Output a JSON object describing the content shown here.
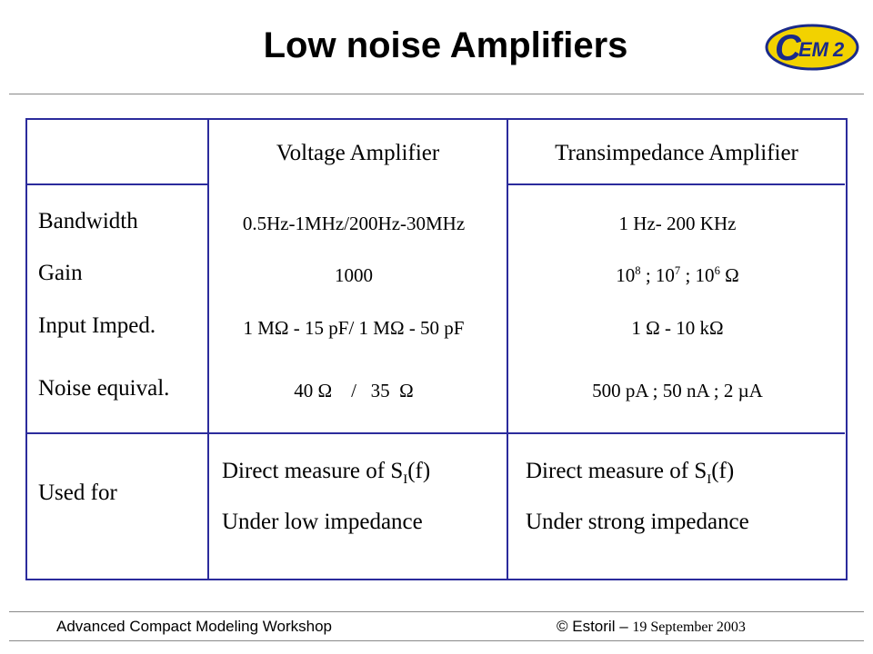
{
  "header": {
    "title": "Low noise Amplifiers",
    "logo": {
      "letter": "C",
      "text": "EM",
      "subscript": "2"
    }
  },
  "table": {
    "columns": [
      "Voltage Amplifier",
      "Transimpedance Amplifier"
    ],
    "rows": [
      {
        "label": "Bandwidth",
        "cells": [
          [
            {
              "text": "0.5Hz-1MHz/200Hz-30MHz"
            }
          ],
          [
            {
              "text": "1 Hz- 200 KHz"
            }
          ]
        ]
      },
      {
        "label": "Gain",
        "cells": [
          [
            {
              "text": "1000"
            }
          ],
          [
            {
              "text": "10"
            },
            {
              "text": "8",
              "style": "sup"
            },
            {
              "text": " ; 10"
            },
            {
              "text": "7",
              "style": "sup"
            },
            {
              "text": " ; 10"
            },
            {
              "text": "6",
              "style": "sup"
            },
            {
              "text": " Ω"
            }
          ]
        ]
      },
      {
        "label": "Input Imped.",
        "cells": [
          [
            {
              "text": "1 MΩ - 15 pF/ 1 MΩ - 50 pF"
            }
          ],
          [
            {
              "text": "1 Ω - 10 kΩ"
            }
          ]
        ]
      },
      {
        "label": "Noise equival.",
        "cells": [
          [
            {
              "text": "40 Ω    /   35  Ω"
            }
          ],
          [
            {
              "text": "500 pA ; 50 nA ; 2 µA"
            }
          ]
        ]
      }
    ],
    "used_for": {
      "label": "Used for",
      "cells": [
        [
          [
            {
              "text": "Direct measure of S"
            },
            {
              "text": "I",
              "style": "sub"
            },
            {
              "text": "(f)"
            }
          ],
          [
            {
              "text": "Under low impedance"
            }
          ]
        ],
        [
          [
            {
              "text": "Direct measure of S"
            },
            {
              "text": "I",
              "style": "sub"
            },
            {
              "text": "(f)"
            }
          ],
          [
            {
              "text": "Under strong impedance"
            }
          ]
        ]
      ]
    }
  },
  "footer": {
    "left": "Advanced Compact Modeling Workshop",
    "right_prefix": "© Estoril – ",
    "right_date": "19 September 2003"
  }
}
